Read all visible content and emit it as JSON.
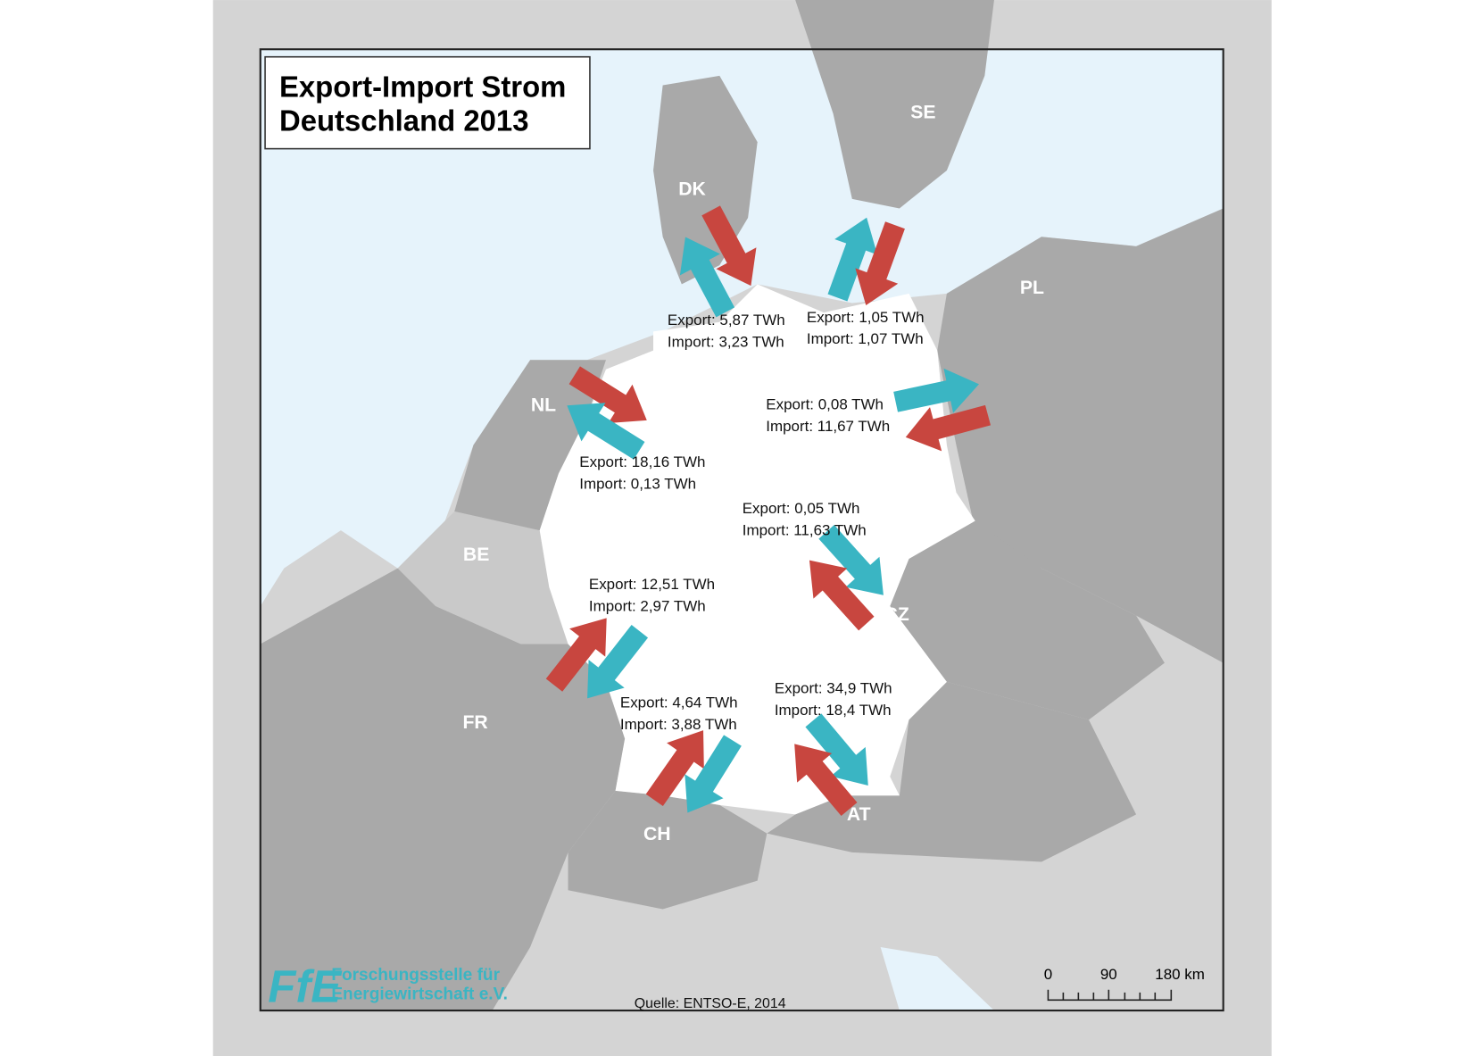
{
  "title": [
    "Export-Import Strom",
    "Deutschland 2013"
  ],
  "countries": [
    {
      "label": "DK"
    },
    {
      "label": "SE"
    },
    {
      "label": "PL"
    },
    {
      "label": "NL"
    },
    {
      "label": "BE"
    },
    {
      "label": "CZ"
    },
    {
      "label": "FR"
    },
    {
      "label": "CH"
    },
    {
      "label": "AT"
    }
  ],
  "flows": [
    {
      "export": "Export: 5,87 TWh",
      "import": "Import: 3,23 TWh"
    },
    {
      "export": "Export: 1,05 TWh",
      "import": "Import: 1,07 TWh"
    },
    {
      "export": "Export: 0,08 TWh",
      "import": "Import: 11,67 TWh"
    },
    {
      "export": "Export: 18,16 TWh",
      "import": "Import: 0,13 TWh"
    },
    {
      "export": "Export: 0,05 TWh",
      "import": "Import: 11,63 TWh"
    },
    {
      "export": "Export: 12,51 TWh",
      "import": "Import: 2,97 TWh"
    },
    {
      "export": "Export: 4,64 TWh",
      "import": "Import: 3,88 TWh"
    },
    {
      "export": "Export: 34,9 TWh",
      "import": "Import: 18,4 TWh"
    }
  ],
  "logo": {
    "mark": "FfE",
    "lines": [
      "Forschungsstelle für",
      "Energiewirtschaft e.V."
    ]
  },
  "source": "Quelle: ENTSO-E, 2014",
  "scale_bar": {
    "labels": [
      "0",
      "90",
      "180 km"
    ]
  }
}
